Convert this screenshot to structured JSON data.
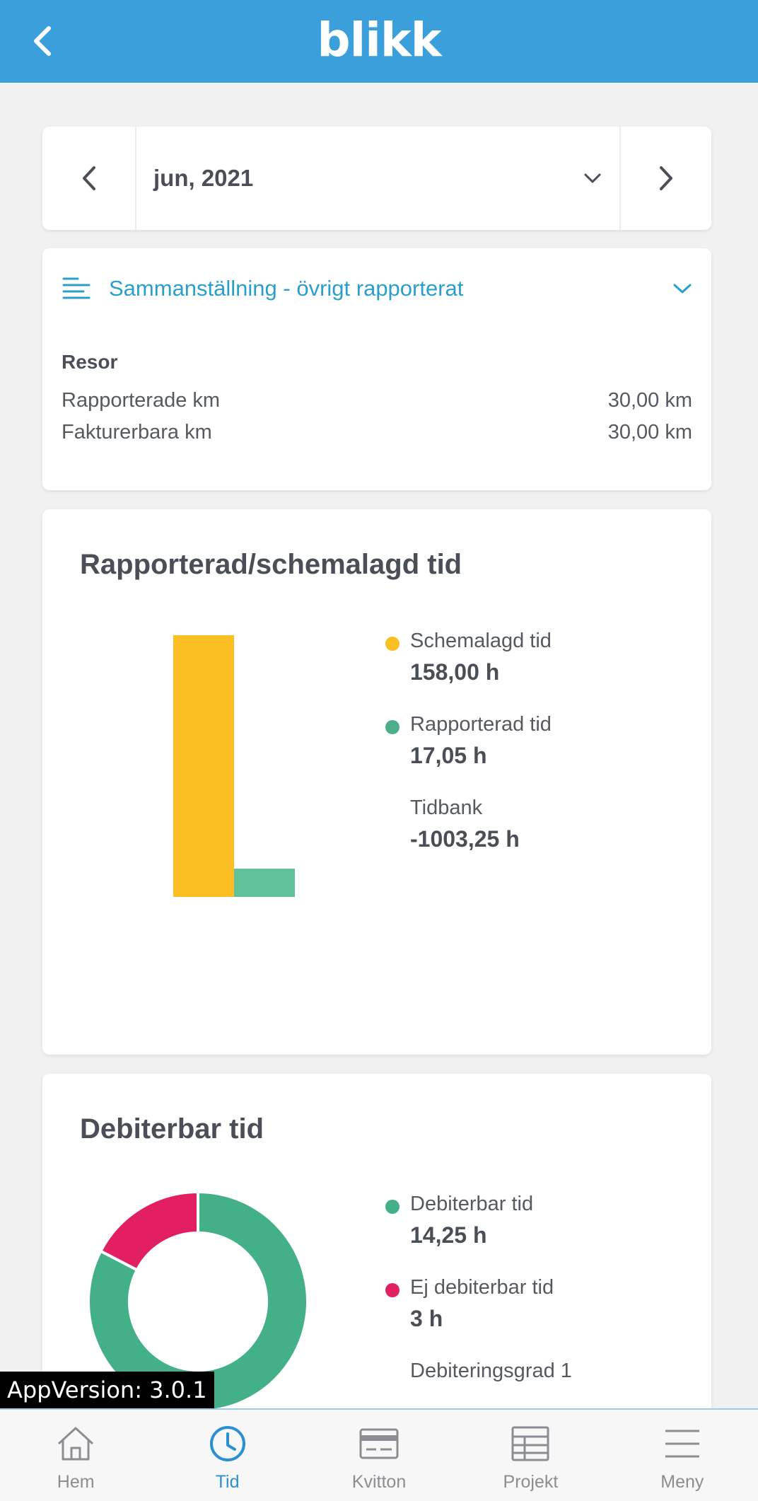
{
  "header": {
    "logo_text": "blikk",
    "back_icon": "chevron-left-icon"
  },
  "month_selector": {
    "label": "jun, 2021"
  },
  "summary": {
    "title": "Sammanställning - övrigt rapporterat",
    "section": "Resor",
    "rows": [
      {
        "label": "Rapporterade km",
        "value": "30,00 km"
      },
      {
        "label": "Fakturerbara km",
        "value": "30,00 km"
      }
    ]
  },
  "schedule_chart": {
    "title": "Rapporterad/schemalagd tid",
    "legend": [
      {
        "label": "Schemalagd tid",
        "value": "158,00 h",
        "color": "#fbbf24"
      },
      {
        "label": "Rapporterad tid",
        "value": "17,05 h",
        "color": "#4caf89"
      },
      {
        "label": "Tidbank",
        "value": "-1003,25 h",
        "color": ""
      }
    ]
  },
  "debit_chart": {
    "title": "Debiterbar tid",
    "legend": [
      {
        "label": "Debiterbar tid",
        "value": "14,25 h",
        "color": "#43b088"
      },
      {
        "label": "Ej debiterbar tid",
        "value": "3 h",
        "color": "#e31f63"
      },
      {
        "label": "Debiteringsgrad 1",
        "value": "",
        "color": ""
      }
    ]
  },
  "chart_data": [
    {
      "type": "bar",
      "categories": [
        "Schemalagd tid",
        "Rapporterad tid"
      ],
      "values": [
        158.0,
        17.05
      ],
      "colors": [
        "#fbbf24",
        "#5fc09a"
      ]
    },
    {
      "type": "pie",
      "categories": [
        "Debiterbar tid",
        "Ej debiterbar tid"
      ],
      "values": [
        14.25,
        3
      ],
      "colors": [
        "#43b088",
        "#e31f63"
      ]
    }
  ],
  "app_version": "AppVersion: 3.0.1",
  "bottom_nav": [
    {
      "label": "Hem",
      "icon": "home-icon"
    },
    {
      "label": "Tid",
      "icon": "clock-icon",
      "active": true
    },
    {
      "label": "Kvitton",
      "icon": "card-icon"
    },
    {
      "label": "Projekt",
      "icon": "table-icon"
    },
    {
      "label": "Meny",
      "icon": "menu-icon"
    }
  ]
}
